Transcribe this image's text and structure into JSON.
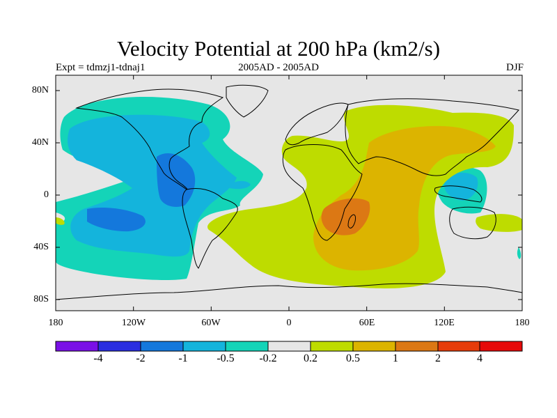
{
  "title": "Velocity Potential at 200 hPa (km2/s)",
  "subtitle_left": "Expt = tdmzj1-tdnaj1",
  "subtitle_center": "2005AD - 2005AD",
  "subtitle_right": "DJF",
  "lat_labels": [
    "80N",
    "40N",
    "0",
    "40S",
    "80S"
  ],
  "lon_labels": [
    "180",
    "120W",
    "60W",
    "0",
    "60E",
    "120E",
    "180"
  ],
  "colorbar": {
    "labels": [
      "-4",
      "-2",
      "-1",
      "-0.5",
      "-0.2",
      "0.2",
      "0.5",
      "1",
      "2",
      "4"
    ],
    "colors": [
      "#7a10e6",
      "#2a2ee0",
      "#1478dc",
      "#14b4dc",
      "#14d4b8",
      "#e6e6e6",
      "#bedc00",
      "#dcb400",
      "#dc7814",
      "#e63c0a",
      "#e60a0a"
    ]
  },
  "fill_colors": {
    "neg_strong": "#1478dc",
    "neg_mid": "#14b4dc",
    "neg_weak": "#14d4b8",
    "neutral": "#e6e6e6",
    "pos_weak": "#bedc00",
    "pos_mid": "#dcb400",
    "pos_strong": "#dc7814"
  }
}
